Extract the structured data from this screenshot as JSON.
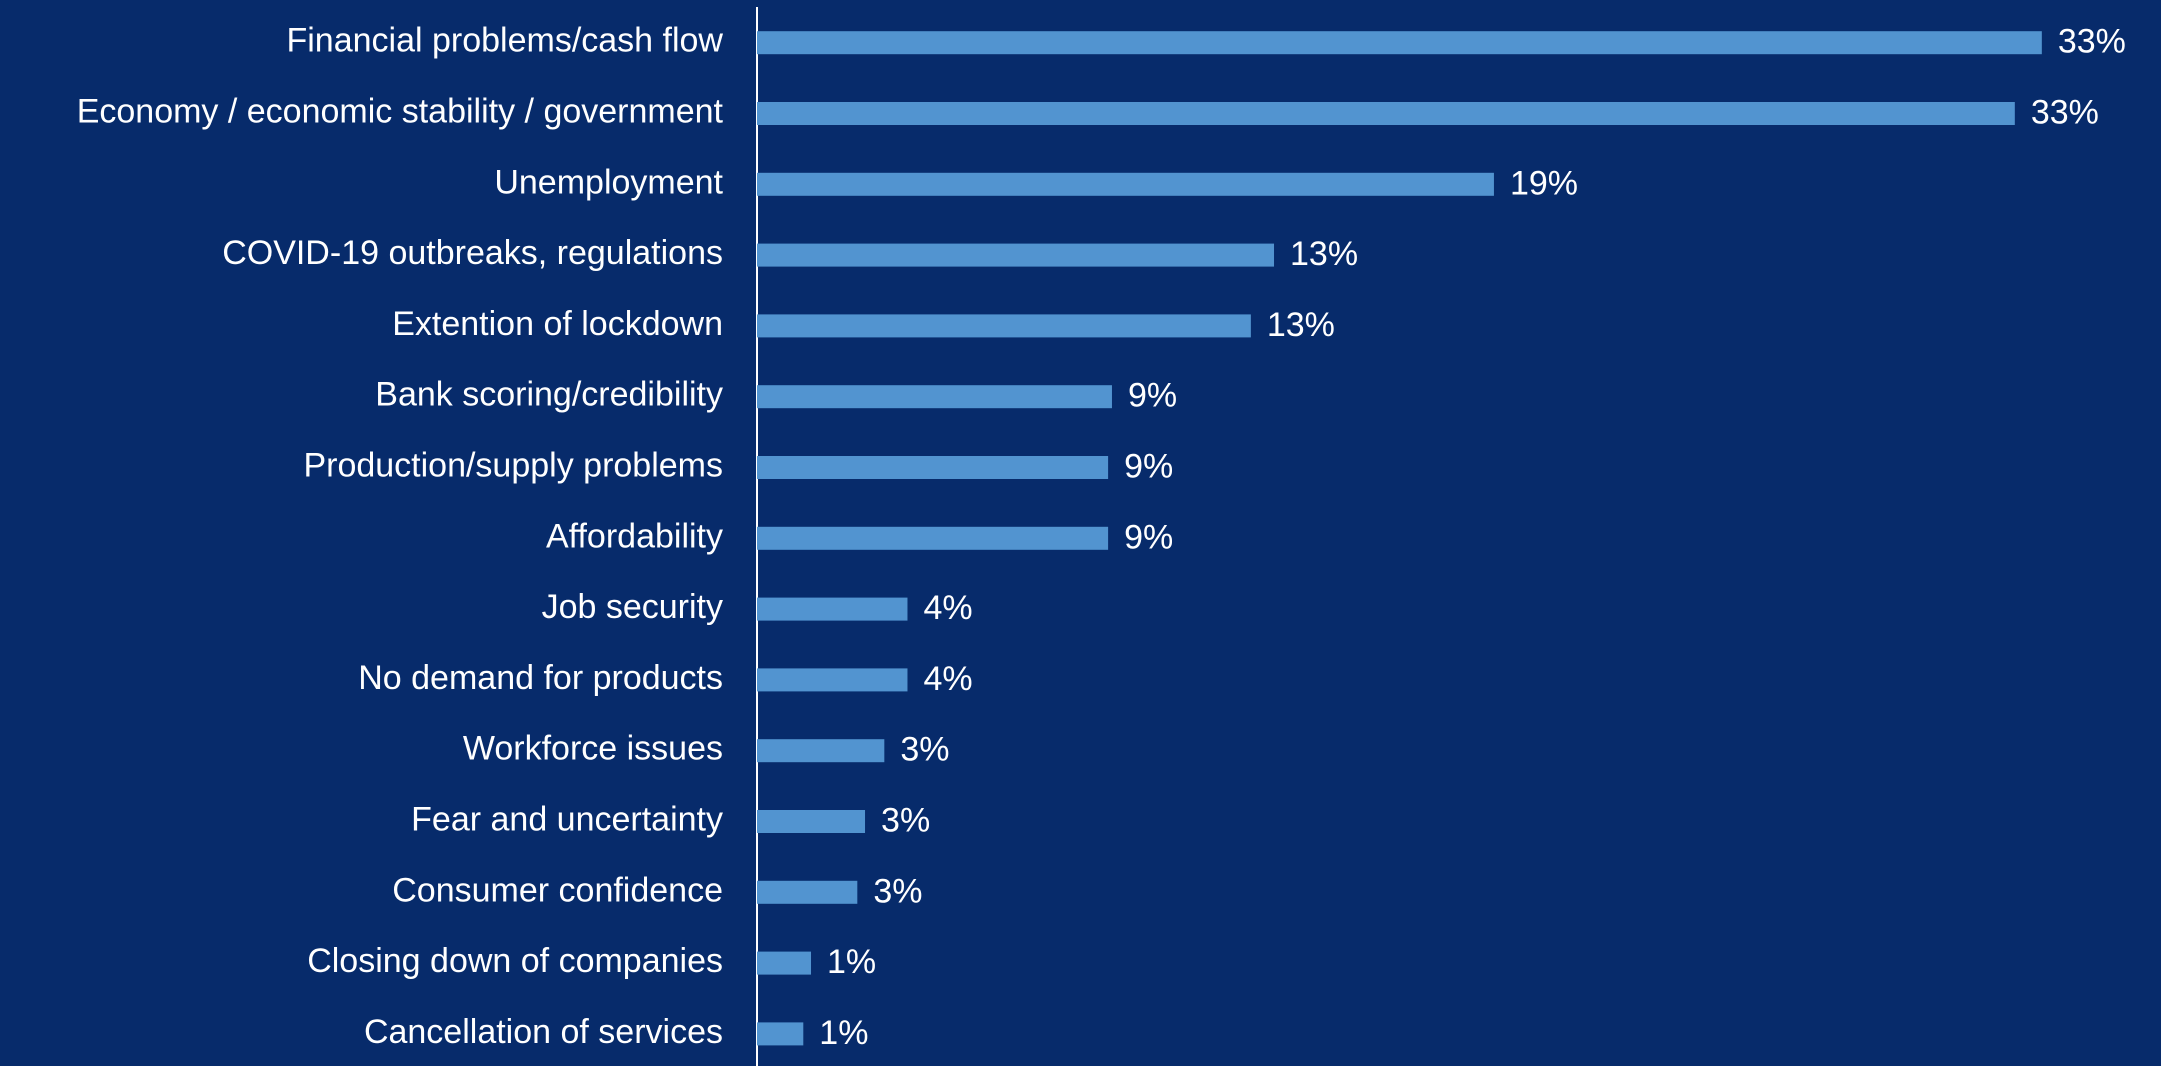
{
  "chart_data": {
    "type": "hbar",
    "categories": [
      "Financial problems/cash flow",
      "Economy / economic stability / government",
      "Unemployment",
      "COVID-19 outbreaks, regulations",
      "Extention of lockdown",
      "Bank scoring/credibility",
      "Production/supply problems",
      "Affordability",
      "Job security",
      "No demand for products",
      "Workforce issues",
      "Fear and uncertainty",
      "Consumer confidence",
      "Closing down of companies",
      "Cancellation of services"
    ],
    "values": [
      33.3,
      32.6,
      19.1,
      13.4,
      12.8,
      9.2,
      9.1,
      9.1,
      3.9,
      3.9,
      3.3,
      2.8,
      2.6,
      1.4,
      1.2
    ],
    "value_labels": [
      "33%",
      "33%",
      "19%",
      "13%",
      "13%",
      "9%",
      "9%",
      "9%",
      "4%",
      "4%",
      "3%",
      "3%",
      "3%",
      "1%",
      "1%"
    ],
    "color": "#5294d0",
    "xlim": [
      0,
      36
    ]
  }
}
